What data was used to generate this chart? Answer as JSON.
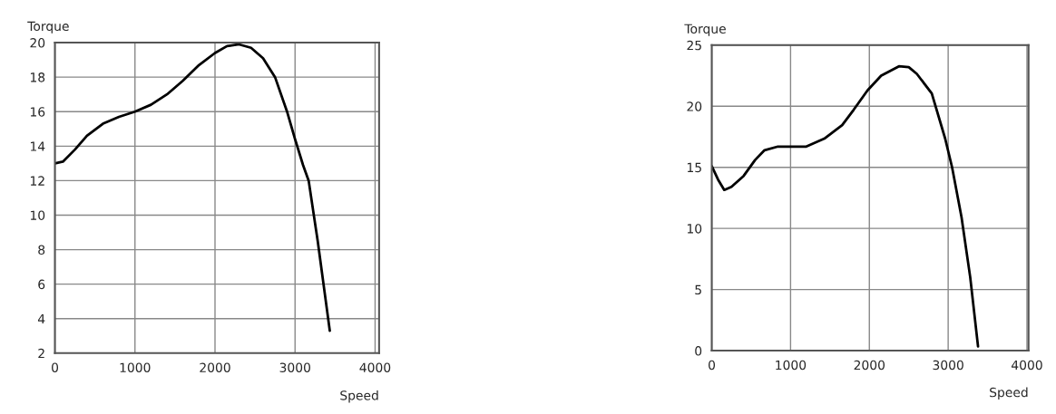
{
  "chart_data": [
    {
      "type": "line",
      "xlabel": "Speed",
      "ylabel": "Torque",
      "xlim": [
        0,
        4050
      ],
      "ylim": [
        2,
        20
      ],
      "xticks": [
        0,
        1000,
        2000,
        3000,
        4000
      ],
      "yticks": [
        2,
        4,
        6,
        8,
        10,
        12,
        14,
        16,
        18,
        20
      ],
      "grid": true,
      "series": [
        {
          "color": "#000000",
          "x": [
            0,
            100,
            250,
            400,
            600,
            800,
            1000,
            1200,
            1400,
            1600,
            1800,
            2000,
            2150,
            2300,
            2450,
            2600,
            2750,
            2900,
            3000,
            3100,
            3170,
            3283,
            3434
          ],
          "values": [
            13,
            13.1,
            13.8,
            14.6,
            15.3,
            15.7,
            16,
            16.4,
            17,
            17.8,
            18.7,
            19.4,
            19.8,
            19.9,
            19.7,
            19.1,
            18,
            16,
            14.4,
            12.9,
            12,
            8.5,
            3.3
          ]
        }
      ]
    },
    {
      "type": "line",
      "xlabel": "Speed",
      "ylabel": "Torque",
      "xlim": [
        0,
        4020
      ],
      "ylim": [
        0,
        25
      ],
      "xticks": [
        0,
        1000,
        2000,
        3000,
        4000
      ],
      "yticks": [
        0,
        5,
        10,
        15,
        20,
        25
      ],
      "grid": true,
      "series": [
        {
          "color": "#000000",
          "x": [
            0,
            80,
            159,
            250,
            405,
            550,
            670,
            840,
            1000,
            1200,
            1428,
            1655,
            1800,
            1977,
            2150,
            2375,
            2500,
            2602,
            2792,
            2962,
            3050,
            3170,
            3280,
            3379
          ],
          "values": [
            15.1,
            14.0,
            13.15,
            13.4,
            14.3,
            15.6,
            16.4,
            16.7,
            16.7,
            16.7,
            17.35,
            18.45,
            19.7,
            21.3,
            22.5,
            23.27,
            23.2,
            22.65,
            21.05,
            17.35,
            15.0,
            10.9,
            6.0,
            0.35
          ]
        }
      ]
    }
  ]
}
